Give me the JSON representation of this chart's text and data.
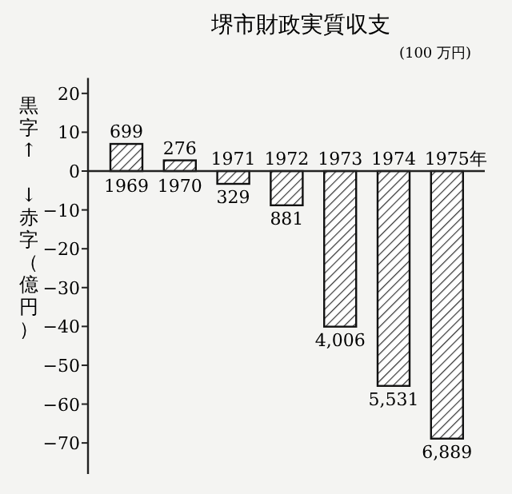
{
  "chart_data": {
    "type": "bar",
    "title": "堺市財政実質収支",
    "subtitle": "(100 万円)",
    "ylabel": "黒字↑ ↓赤字（億円）",
    "xlabel": "年",
    "categories": [
      "1969",
      "1970",
      "1971",
      "1972",
      "1973",
      "1974",
      "1975"
    ],
    "values": [
      6.99,
      2.76,
      -3.29,
      -8.81,
      -40.06,
      -55.31,
      -68.89
    ],
    "annotations": [
      {
        "text": "699",
        "x": "1969",
        "y": 6.99
      },
      {
        "text": "276",
        "x": "1970",
        "y": 2.76
      },
      {
        "text": "329",
        "x": "1971",
        "y": -3.29
      },
      {
        "text": "881",
        "x": "1972",
        "y": -8.81
      },
      {
        "text": "4,006",
        "x": "1973",
        "y": -40.06
      },
      {
        "text": "5,531",
        "x": "1974",
        "y": -55.31
      },
      {
        "text": "6,889",
        "x": "1975",
        "y": -68.89
      }
    ],
    "color": "#111111",
    "ylim": [
      -78,
      24
    ],
    "yticks": [
      -70,
      -60,
      -50,
      -40,
      -30,
      -20,
      -10,
      0,
      10,
      20
    ],
    "grid": false
  }
}
